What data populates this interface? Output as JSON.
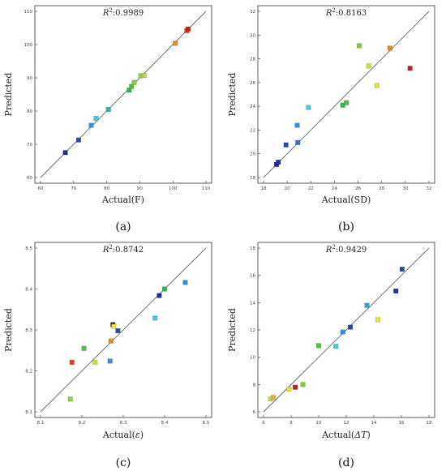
{
  "chart_data": [
    {
      "type": "scatter",
      "panel_label": "(a)",
      "r2_prefix": "R",
      "r2_sup": "2",
      "r2_value": ":0.9989",
      "xlabel": "Actual(F)",
      "ylabel": "Predicted",
      "xlim": [
        60,
        110
      ],
      "ylim": [
        60,
        110
      ],
      "xticks": [
        "60",
        "70",
        "80",
        "90",
        "100",
        "110"
      ],
      "yticks": [
        "60",
        "70",
        "80",
        "90",
        "100",
        "110"
      ],
      "fit_line": [
        [
          60,
          60
        ],
        [
          110,
          110
        ]
      ],
      "points": [
        {
          "x": 67.5,
          "y": 67.5,
          "color": "#1f2a9e"
        },
        {
          "x": 71.5,
          "y": 71.3,
          "color": "#2a47b0"
        },
        {
          "x": 75.3,
          "y": 75.7,
          "color": "#3b8fd0"
        },
        {
          "x": 76.8,
          "y": 77.8,
          "color": "#48c8d8"
        },
        {
          "x": 80.5,
          "y": 80.5,
          "color": "#2bb4a6"
        },
        {
          "x": 86.8,
          "y": 86.3,
          "color": "#35b84a"
        },
        {
          "x": 87.5,
          "y": 87.4,
          "color": "#4fc240"
        },
        {
          "x": 88.3,
          "y": 88.6,
          "color": "#86d03a"
        },
        {
          "x": 90.3,
          "y": 90.6,
          "color": "#8fd43a"
        },
        {
          "x": 91.3,
          "y": 90.7,
          "color": "#b5d93a"
        },
        {
          "x": 100.7,
          "y": 100.4,
          "color": "#e08a2a"
        },
        {
          "x": 104.2,
          "y": 104.2,
          "color": "#d9432a"
        },
        {
          "x": 104.6,
          "y": 104.7,
          "color": "#c0201e"
        }
      ]
    },
    {
      "type": "scatter",
      "panel_label": "(b)",
      "r2_prefix": "R",
      "r2_sup": "2",
      "r2_value": ":0.8163",
      "xlabel": "Actual(SD)",
      "ylabel": "Predicted",
      "xlim": [
        18,
        32
      ],
      "ylim": [
        18,
        32
      ],
      "xticks": [
        "18",
        "20",
        "22",
        "24",
        "26",
        "28",
        "30",
        "32"
      ],
      "yticks": [
        "18",
        "20",
        "22",
        "24",
        "26",
        "28",
        "30",
        "32"
      ],
      "fit_line": [
        [
          18,
          18
        ],
        [
          32,
          32
        ]
      ],
      "points": [
        {
          "x": 19.1,
          "y": 19.1,
          "color": "#1f2a9e"
        },
        {
          "x": 19.25,
          "y": 19.3,
          "color": "#2033a8"
        },
        {
          "x": 19.9,
          "y": 20.75,
          "color": "#2a47b0"
        },
        {
          "x": 20.9,
          "y": 20.95,
          "color": "#3b6ec0"
        },
        {
          "x": 20.85,
          "y": 22.4,
          "color": "#3b8fd0"
        },
        {
          "x": 21.8,
          "y": 23.9,
          "color": "#48c8d8"
        },
        {
          "x": 24.7,
          "y": 24.1,
          "color": "#35b84a"
        },
        {
          "x": 25.0,
          "y": 24.3,
          "color": "#4fc240"
        },
        {
          "x": 26.1,
          "y": 29.1,
          "color": "#7fcf3a"
        },
        {
          "x": 26.9,
          "y": 27.4,
          "color": "#c9e03a"
        },
        {
          "x": 27.6,
          "y": 25.75,
          "color": "#e0e040"
        },
        {
          "x": 28.7,
          "y": 28.9,
          "color": "#e08a2a"
        },
        {
          "x": 30.4,
          "y": 27.2,
          "color": "#c0201e"
        }
      ]
    },
    {
      "type": "scatter",
      "panel_label": "(c)",
      "r2_prefix": "R",
      "r2_sup": "2",
      "r2_value": ":0.8742",
      "xlabel_prefix": "Actual(",
      "xlabel_symbol": "ε",
      "xlabel_suffix": ")",
      "ylabel": "Predicted",
      "xlim": [
        8.1,
        8.5
      ],
      "ylim": [
        8.1,
        8.5
      ],
      "xticks": [
        "8.1",
        "8.2",
        "8.3",
        "8.4",
        "8.5"
      ],
      "yticks": [
        "8.1",
        "8.2",
        "8.3",
        "8.4",
        "8.5"
      ],
      "fit_line": [
        [
          8.1,
          8.1
        ],
        [
          8.5,
          8.5
        ]
      ],
      "points": [
        {
          "x": 8.172,
          "y": 8.131,
          "color": "#8fd43a"
        },
        {
          "x": 8.176,
          "y": 8.221,
          "color": "#d9432a"
        },
        {
          "x": 8.205,
          "y": 8.255,
          "color": "#4fc240"
        },
        {
          "x": 8.232,
          "y": 8.221,
          "color": "#c9e03a"
        },
        {
          "x": 8.268,
          "y": 8.224,
          "color": "#3b8fd0"
        },
        {
          "x": 8.27,
          "y": 8.273,
          "color": "#e08a2a"
        },
        {
          "x": 8.275,
          "y": 8.313,
          "color": "#222222"
        },
        {
          "x": 8.277,
          "y": 8.309,
          "color": "#f0e040"
        },
        {
          "x": 8.287,
          "y": 8.298,
          "color": "#2a47b0"
        },
        {
          "x": 8.377,
          "y": 8.329,
          "color": "#48c8d8"
        },
        {
          "x": 8.387,
          "y": 8.384,
          "color": "#1f2a9e"
        },
        {
          "x": 8.4,
          "y": 8.4,
          "color": "#35b84a"
        },
        {
          "x": 8.45,
          "y": 8.416,
          "color": "#3b8fd0"
        }
      ]
    },
    {
      "type": "scatter",
      "panel_label": "(d)",
      "r2_prefix": "R",
      "r2_sup": "2",
      "r2_value": ":0.9429",
      "xlabel_prefix": "Actual(",
      "xlabel_symbol": "ΔT",
      "xlabel_suffix": ")",
      "ylabel": "Predicted",
      "xlim": [
        6,
        18
      ],
      "ylim": [
        6,
        18
      ],
      "xticks": [
        "6",
        "8",
        "10",
        "12",
        "14",
        "16",
        "18"
      ],
      "yticks": [
        "6",
        "8",
        "10",
        "12",
        "14",
        "16",
        "18"
      ],
      "fit_line": [
        [
          6,
          6
        ],
        [
          18,
          18
        ]
      ],
      "points": [
        {
          "x": 6.5,
          "y": 6.95,
          "color": "#c9e03a"
        },
        {
          "x": 6.7,
          "y": 7.05,
          "color": "#e0b03a"
        },
        {
          "x": 7.85,
          "y": 7.65,
          "color": "#e8e040"
        },
        {
          "x": 8.3,
          "y": 7.8,
          "color": "#c0201e"
        },
        {
          "x": 8.85,
          "y": 8.0,
          "color": "#7fcf3a"
        },
        {
          "x": 10.0,
          "y": 10.85,
          "color": "#4fc240"
        },
        {
          "x": 11.25,
          "y": 10.8,
          "color": "#48c8d8"
        },
        {
          "x": 11.75,
          "y": 11.85,
          "color": "#3b8fd0"
        },
        {
          "x": 12.3,
          "y": 12.2,
          "color": "#2a47b0"
        },
        {
          "x": 13.5,
          "y": 13.8,
          "color": "#3b9fc8"
        },
        {
          "x": 14.3,
          "y": 12.75,
          "color": "#e0e040"
        },
        {
          "x": 15.6,
          "y": 14.85,
          "color": "#2033a8"
        },
        {
          "x": 16.05,
          "y": 16.45,
          "color": "#2a47b0"
        }
      ]
    }
  ]
}
